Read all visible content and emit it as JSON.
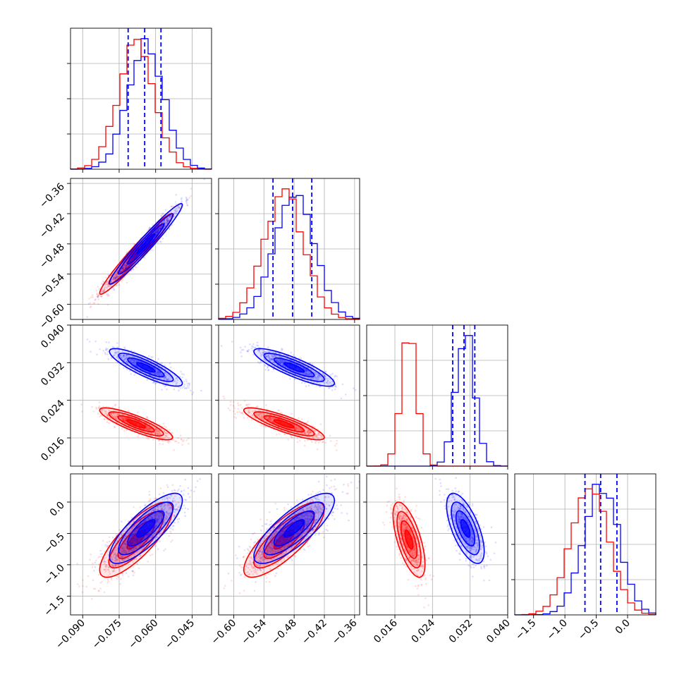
{
  "chart_data": {
    "type": "scatter",
    "subtype": "corner",
    "grid": true,
    "series_colors": {
      "blue": "#0000ff",
      "red": "#ff0000"
    },
    "quantile_line_color": "#0000ff",
    "params": [
      {
        "range": [
          -0.095,
          -0.037
        ],
        "ticks": [
          -0.09,
          -0.075,
          -0.06,
          -0.045
        ],
        "tick_labels": [
          "−0.090",
          "−0.075",
          "−0.060",
          "−0.045"
        ],
        "blue_mean": -0.064,
        "blue_sd": 0.0075,
        "red_mean": -0.068,
        "red_sd": 0.0075,
        "quantiles": [
          -0.0713,
          -0.0645,
          -0.0578
        ]
      },
      {
        "range": [
          -0.63,
          -0.35
        ],
        "ticks": [
          -0.6,
          -0.54,
          -0.48,
          -0.42,
          -0.36
        ],
        "tick_labels": [
          "−0.60",
          "−0.54",
          "−0.48",
          "−0.42",
          "−0.36"
        ],
        "blue_mean": -0.48,
        "blue_sd": 0.04,
        "red_mean": -0.5,
        "red_sd": 0.04,
        "quantiles": [
          -0.522,
          -0.483,
          -0.445
        ]
      },
      {
        "range": [
          0.01,
          0.04
        ],
        "ticks": [
          0.016,
          0.024,
          0.032,
          0.04
        ],
        "tick_labels": [
          "0.016",
          "0.024",
          "0.032",
          "0.040"
        ],
        "blue_mean": 0.031,
        "blue_sd": 0.002,
        "red_mean": 0.019,
        "red_sd": 0.0017,
        "quantiles": [
          0.0283,
          0.0307,
          0.033
        ]
      },
      {
        "range": [
          -1.8,
          0.45
        ],
        "ticks": [
          -1.5,
          -1.0,
          -0.5,
          0.0
        ],
        "tick_labels": [
          "−1.5",
          "−1.0",
          "−0.5",
          "0.0"
        ],
        "blue_mean": -0.42,
        "blue_sd": 0.28,
        "red_mean": -0.6,
        "red_sd": 0.3,
        "quantiles": [
          -0.68,
          -0.43,
          -0.17
        ]
      }
    ],
    "correlations": {
      "0_1": 0.97,
      "0_2": -0.85,
      "1_2": -0.85,
      "0_3": 0.8,
      "1_3": 0.8,
      "2_3": -0.65
    }
  }
}
